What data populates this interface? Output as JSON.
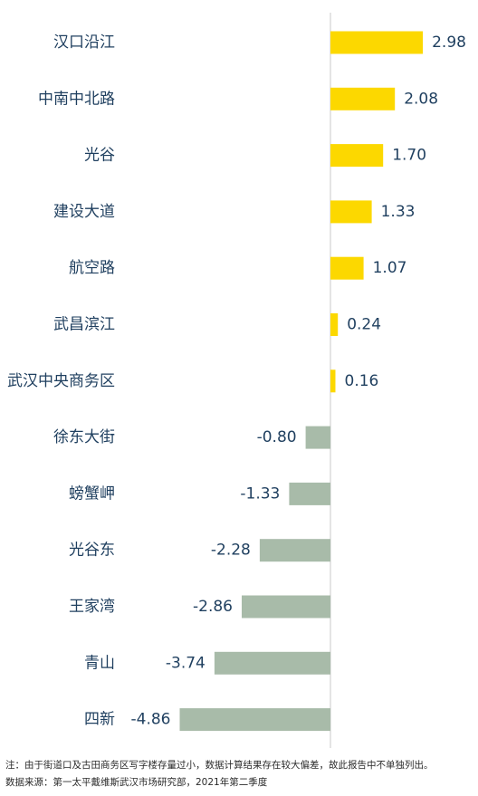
{
  "chart_data": {
    "type": "bar",
    "orientation": "horizontal",
    "categories": [
      "汉口沿江",
      "中南中北路",
      "光谷",
      "建设大道",
      "航空路",
      "武昌滨江",
      "武汉中央商务区",
      "徐东大街",
      "螃蟹岬",
      "光谷东",
      "王家湾",
      "青山",
      "四新"
    ],
    "values": [
      2.98,
      2.08,
      1.7,
      1.33,
      1.07,
      0.24,
      0.16,
      -0.8,
      -1.33,
      -2.28,
      -2.86,
      -3.74,
      -4.86
    ],
    "value_labels": [
      "2.98",
      "2.08",
      "1.70",
      "1.33",
      "1.07",
      "0.24",
      "0.16",
      "-0.80",
      "-1.33",
      "-2.28",
      "-2.86",
      "-3.74",
      "-4.86"
    ],
    "title": "",
    "xlabel": "",
    "ylabel": "",
    "xlim": [
      -5.2,
      3.3
    ],
    "grid": false,
    "legend": false,
    "colors": {
      "positive": "#fcd800",
      "negative": "#a8bba9",
      "axis": "#c8c8c8",
      "text": "#1f3f5f"
    }
  },
  "notes": {
    "footnote": "注：由于街道口及古田商务区写字楼存量过小，数据计算结果存在较大偏差，故此报告中不单独列出。",
    "source": "数据来源：第一太平戴维斯武汉市场研究部，2021年第二季度"
  }
}
